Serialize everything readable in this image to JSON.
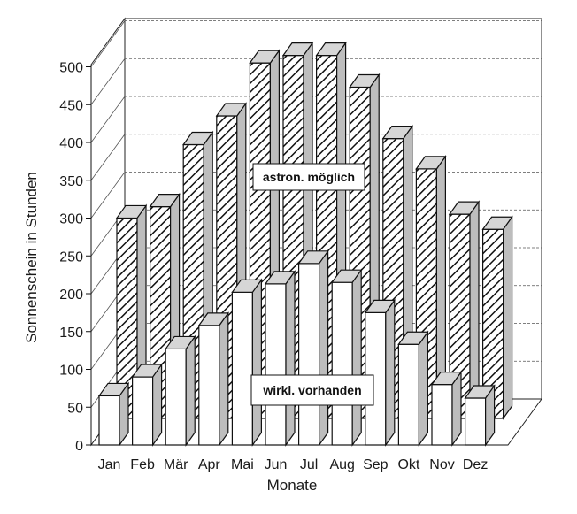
{
  "chart_data": {
    "type": "bar",
    "title": "",
    "xlabel": "Monate",
    "ylabel": "Sonnenschein in Stunden",
    "ylim": [
      0,
      500
    ],
    "yticks": [
      0,
      50,
      100,
      150,
      200,
      250,
      300,
      350,
      400,
      450,
      500
    ],
    "categories": [
      "Jan",
      "Feb",
      "Mär",
      "Apr",
      "Mai",
      "Jun",
      "Jul",
      "Aug",
      "Sep",
      "Okt",
      "Nov",
      "Dez"
    ],
    "series": [
      {
        "name": "astron. möglich",
        "pattern": "diagonal-hatch",
        "values": [
          300,
          315,
          397,
          435,
          505,
          515,
          515,
          473,
          405,
          365,
          305,
          285
        ]
      },
      {
        "name": "wirkl. vorhanden",
        "pattern": "white",
        "values": [
          65,
          90,
          127,
          158,
          202,
          213,
          240,
          215,
          175,
          133,
          80,
          62
        ]
      }
    ],
    "grid": true,
    "style": "3d-perspective"
  },
  "colors": {
    "stroke": "#111111",
    "side": "#bdbdbd",
    "top": "#d6d6d6",
    "front_white": "#ffffff",
    "background": "#ffffff"
  }
}
